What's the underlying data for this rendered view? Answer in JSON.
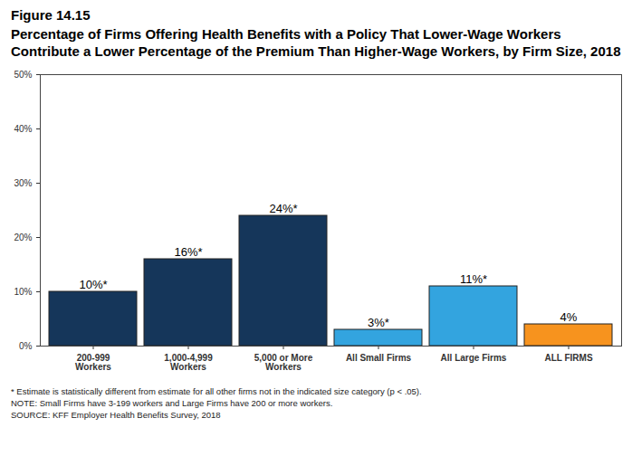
{
  "chart_data": {
    "type": "bar",
    "title": "Figure 14.15",
    "subtitle": "Percentage of Firms Offering Health Benefits with a Policy That Lower-Wage Workers Contribute a Lower Percentage of the Premium Than Higher-Wage Workers, by Firm Size, 2018",
    "categories": [
      "200-999 Workers",
      "1,000-4,999 Workers",
      "5,000 or More Workers",
      "All Small Firms",
      "All Large Firms",
      "ALL FIRMS"
    ],
    "values": [
      10,
      16,
      24,
      3,
      11,
      4
    ],
    "value_labels": [
      "10%*",
      "16%*",
      "24%*",
      "3%*",
      "11%*",
      "4%"
    ],
    "colors": [
      "#15365a",
      "#15365a",
      "#15365a",
      "#33a4df",
      "#33a4df",
      "#f7931e"
    ],
    "data_labels": true,
    "ylim": [
      0,
      50
    ],
    "yticks": [
      {
        "value": 0,
        "label": "0%"
      },
      {
        "value": 10,
        "label": "10%"
      },
      {
        "value": 20,
        "label": "20%"
      },
      {
        "value": 30,
        "label": "30%"
      },
      {
        "value": 40,
        "label": "40%"
      },
      {
        "value": 50,
        "label": "50%"
      }
    ],
    "grid": false,
    "annotations": [
      "* Estimate is statistically different from estimate for all other firms not in the indicated size category (p < .05).",
      "NOTE: Small Firms have 3-199 workers and Large Firms have 200 or more workers.",
      "SOURCE: KFF Employer Health Benefits Survey, 2018"
    ]
  }
}
